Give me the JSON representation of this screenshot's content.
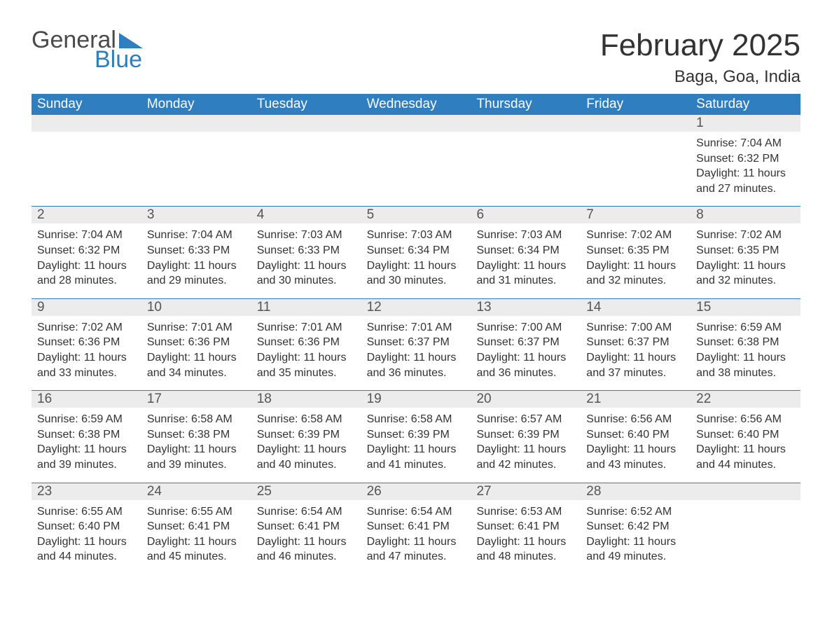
{
  "logo": {
    "word1": "General",
    "word2": "Blue"
  },
  "title": "February 2025",
  "location": "Baga, Goa, India",
  "colors": {
    "brand_blue": "#2f7ec0",
    "header_text": "#ffffff",
    "daynum_bg": "#ececec",
    "text": "#333333",
    "muted_text": "#555555",
    "background": "#ffffff"
  },
  "day_headers": [
    "Sunday",
    "Monday",
    "Tuesday",
    "Wednesday",
    "Thursday",
    "Friday",
    "Saturday"
  ],
  "weeks": [
    [
      {
        "empty": true
      },
      {
        "empty": true
      },
      {
        "empty": true
      },
      {
        "empty": true
      },
      {
        "empty": true
      },
      {
        "empty": true
      },
      {
        "n": "1",
        "sunrise": "Sunrise: 7:04 AM",
        "sunset": "Sunset: 6:32 PM",
        "day1": "Daylight: 11 hours",
        "day2": "and 27 minutes."
      }
    ],
    [
      {
        "n": "2",
        "sunrise": "Sunrise: 7:04 AM",
        "sunset": "Sunset: 6:32 PM",
        "day1": "Daylight: 11 hours",
        "day2": "and 28 minutes."
      },
      {
        "n": "3",
        "sunrise": "Sunrise: 7:04 AM",
        "sunset": "Sunset: 6:33 PM",
        "day1": "Daylight: 11 hours",
        "day2": "and 29 minutes."
      },
      {
        "n": "4",
        "sunrise": "Sunrise: 7:03 AM",
        "sunset": "Sunset: 6:33 PM",
        "day1": "Daylight: 11 hours",
        "day2": "and 30 minutes."
      },
      {
        "n": "5",
        "sunrise": "Sunrise: 7:03 AM",
        "sunset": "Sunset: 6:34 PM",
        "day1": "Daylight: 11 hours",
        "day2": "and 30 minutes."
      },
      {
        "n": "6",
        "sunrise": "Sunrise: 7:03 AM",
        "sunset": "Sunset: 6:34 PM",
        "day1": "Daylight: 11 hours",
        "day2": "and 31 minutes."
      },
      {
        "n": "7",
        "sunrise": "Sunrise: 7:02 AM",
        "sunset": "Sunset: 6:35 PM",
        "day1": "Daylight: 11 hours",
        "day2": "and 32 minutes."
      },
      {
        "n": "8",
        "sunrise": "Sunrise: 7:02 AM",
        "sunset": "Sunset: 6:35 PM",
        "day1": "Daylight: 11 hours",
        "day2": "and 32 minutes."
      }
    ],
    [
      {
        "n": "9",
        "sunrise": "Sunrise: 7:02 AM",
        "sunset": "Sunset: 6:36 PM",
        "day1": "Daylight: 11 hours",
        "day2": "and 33 minutes."
      },
      {
        "n": "10",
        "sunrise": "Sunrise: 7:01 AM",
        "sunset": "Sunset: 6:36 PM",
        "day1": "Daylight: 11 hours",
        "day2": "and 34 minutes."
      },
      {
        "n": "11",
        "sunrise": "Sunrise: 7:01 AM",
        "sunset": "Sunset: 6:36 PM",
        "day1": "Daylight: 11 hours",
        "day2": "and 35 minutes."
      },
      {
        "n": "12",
        "sunrise": "Sunrise: 7:01 AM",
        "sunset": "Sunset: 6:37 PM",
        "day1": "Daylight: 11 hours",
        "day2": "and 36 minutes."
      },
      {
        "n": "13",
        "sunrise": "Sunrise: 7:00 AM",
        "sunset": "Sunset: 6:37 PM",
        "day1": "Daylight: 11 hours",
        "day2": "and 36 minutes."
      },
      {
        "n": "14",
        "sunrise": "Sunrise: 7:00 AM",
        "sunset": "Sunset: 6:37 PM",
        "day1": "Daylight: 11 hours",
        "day2": "and 37 minutes."
      },
      {
        "n": "15",
        "sunrise": "Sunrise: 6:59 AM",
        "sunset": "Sunset: 6:38 PM",
        "day1": "Daylight: 11 hours",
        "day2": "and 38 minutes."
      }
    ],
    [
      {
        "n": "16",
        "sunrise": "Sunrise: 6:59 AM",
        "sunset": "Sunset: 6:38 PM",
        "day1": "Daylight: 11 hours",
        "day2": "and 39 minutes."
      },
      {
        "n": "17",
        "sunrise": "Sunrise: 6:58 AM",
        "sunset": "Sunset: 6:38 PM",
        "day1": "Daylight: 11 hours",
        "day2": "and 39 minutes."
      },
      {
        "n": "18",
        "sunrise": "Sunrise: 6:58 AM",
        "sunset": "Sunset: 6:39 PM",
        "day1": "Daylight: 11 hours",
        "day2": "and 40 minutes."
      },
      {
        "n": "19",
        "sunrise": "Sunrise: 6:58 AM",
        "sunset": "Sunset: 6:39 PM",
        "day1": "Daylight: 11 hours",
        "day2": "and 41 minutes."
      },
      {
        "n": "20",
        "sunrise": "Sunrise: 6:57 AM",
        "sunset": "Sunset: 6:39 PM",
        "day1": "Daylight: 11 hours",
        "day2": "and 42 minutes."
      },
      {
        "n": "21",
        "sunrise": "Sunrise: 6:56 AM",
        "sunset": "Sunset: 6:40 PM",
        "day1": "Daylight: 11 hours",
        "day2": "and 43 minutes."
      },
      {
        "n": "22",
        "sunrise": "Sunrise: 6:56 AM",
        "sunset": "Sunset: 6:40 PM",
        "day1": "Daylight: 11 hours",
        "day2": "and 44 minutes."
      }
    ],
    [
      {
        "n": "23",
        "sunrise": "Sunrise: 6:55 AM",
        "sunset": "Sunset: 6:40 PM",
        "day1": "Daylight: 11 hours",
        "day2": "and 44 minutes."
      },
      {
        "n": "24",
        "sunrise": "Sunrise: 6:55 AM",
        "sunset": "Sunset: 6:41 PM",
        "day1": "Daylight: 11 hours",
        "day2": "and 45 minutes."
      },
      {
        "n": "25",
        "sunrise": "Sunrise: 6:54 AM",
        "sunset": "Sunset: 6:41 PM",
        "day1": "Daylight: 11 hours",
        "day2": "and 46 minutes."
      },
      {
        "n": "26",
        "sunrise": "Sunrise: 6:54 AM",
        "sunset": "Sunset: 6:41 PM",
        "day1": "Daylight: 11 hours",
        "day2": "and 47 minutes."
      },
      {
        "n": "27",
        "sunrise": "Sunrise: 6:53 AM",
        "sunset": "Sunset: 6:41 PM",
        "day1": "Daylight: 11 hours",
        "day2": "and 48 minutes."
      },
      {
        "n": "28",
        "sunrise": "Sunrise: 6:52 AM",
        "sunset": "Sunset: 6:42 PM",
        "day1": "Daylight: 11 hours",
        "day2": "and 49 minutes."
      },
      {
        "empty": true
      }
    ]
  ]
}
